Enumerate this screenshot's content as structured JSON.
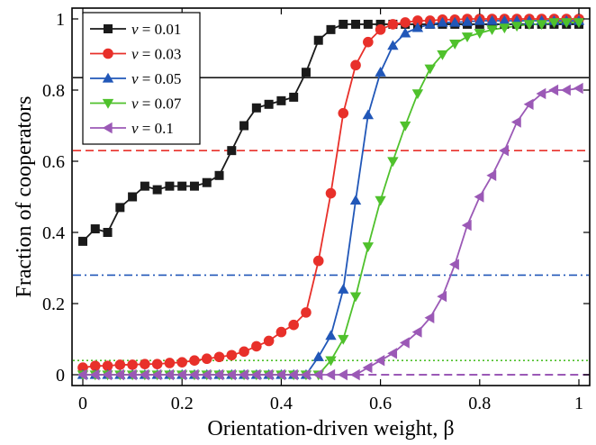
{
  "chart_data": {
    "type": "line",
    "xlabel": "Orientation-driven weight, β",
    "ylabel": "Fraction of cooperators",
    "xlim": [
      0,
      1
    ],
    "ylim": [
      0,
      1
    ],
    "x_ticks": [
      "0",
      "0.2",
      "0.4",
      "0.6",
      "0.8",
      "1"
    ],
    "y_ticks": [
      "0",
      "0.2",
      "0.4",
      "0.6",
      "0.8",
      "1"
    ],
    "grid": false,
    "legend_position": "top-left",
    "x": [
      0,
      0.025,
      0.05,
      0.075,
      0.1,
      0.125,
      0.15,
      0.175,
      0.2,
      0.225,
      0.25,
      0.275,
      0.3,
      0.325,
      0.35,
      0.375,
      0.4,
      0.425,
      0.45,
      0.475,
      0.5,
      0.525,
      0.55,
      0.575,
      0.6,
      0.625,
      0.65,
      0.675,
      0.7,
      0.725,
      0.75,
      0.775,
      0.8,
      0.825,
      0.85,
      0.875,
      0.9,
      0.925,
      0.95,
      0.975,
      1
    ],
    "series": [
      {
        "name": "v = 0.01",
        "var": "v",
        "value_text": " = 0.01",
        "color": "#1a1a1a",
        "marker": "square",
        "baseline": 0.835,
        "baseline_style": "solid",
        "values": [
          0.375,
          0.41,
          0.4,
          0.47,
          0.5,
          0.53,
          0.52,
          0.53,
          0.53,
          0.53,
          0.54,
          0.56,
          0.63,
          0.7,
          0.75,
          0.76,
          0.77,
          0.78,
          0.85,
          0.94,
          0.97,
          0.985,
          0.985,
          0.985,
          0.985,
          0.985,
          0.985,
          0.985,
          0.985,
          0.985,
          0.985,
          0.985,
          0.985,
          0.985,
          0.985,
          0.985,
          0.985,
          0.985,
          0.985,
          0.985,
          0.985
        ]
      },
      {
        "name": "v = 0.03",
        "var": "v",
        "value_text": " = 0.03",
        "color": "#e8302a",
        "marker": "circle",
        "baseline": 0.63,
        "baseline_style": "dashed",
        "values": [
          0.02,
          0.025,
          0.025,
          0.028,
          0.028,
          0.03,
          0.03,
          0.033,
          0.035,
          0.04,
          0.045,
          0.05,
          0.055,
          0.065,
          0.08,
          0.095,
          0.12,
          0.14,
          0.175,
          0.32,
          0.51,
          0.735,
          0.87,
          0.935,
          0.97,
          0.985,
          0.99,
          0.995,
          0.995,
          0.998,
          0.998,
          1.0,
          1.0,
          1.0,
          1.0,
          1.0,
          1.0,
          1.0,
          1.0,
          1.0,
          1.0
        ]
      },
      {
        "name": "v = 0.05",
        "var": "v",
        "value_text": " = 0.05",
        "color": "#2157b8",
        "marker": "triangle-up",
        "baseline": 0.28,
        "baseline_style": "dashdot",
        "values": [
          0.0,
          0.0,
          0.0,
          0.0,
          0.0,
          0.0,
          0.0,
          0.0,
          0.0,
          0.0,
          0.0,
          0.0,
          0.0,
          0.0,
          0.0,
          0.0,
          0.0,
          0.0,
          0.0,
          0.05,
          0.11,
          0.24,
          0.49,
          0.73,
          0.85,
          0.925,
          0.96,
          0.975,
          0.985,
          0.99,
          0.99,
          0.992,
          0.995,
          0.995,
          0.995,
          0.995,
          0.995,
          0.995,
          0.995,
          0.995,
          0.995
        ]
      },
      {
        "name": "v = 0.07",
        "var": "v",
        "value_text": " = 0.07",
        "color": "#4fc12c",
        "marker": "triangle-down",
        "baseline": 0.04,
        "baseline_style": "dotted",
        "values": [
          0.0,
          0.0,
          0.0,
          0.0,
          0.0,
          0.0,
          0.0,
          0.0,
          0.0,
          0.0,
          0.0,
          0.0,
          0.0,
          0.0,
          0.0,
          0.0,
          0.0,
          0.0,
          0.0,
          0.0,
          0.04,
          0.1,
          0.22,
          0.36,
          0.49,
          0.6,
          0.7,
          0.79,
          0.86,
          0.9,
          0.93,
          0.95,
          0.96,
          0.97,
          0.975,
          0.98,
          0.985,
          0.985,
          0.99,
          0.99,
          0.99
        ]
      },
      {
        "name": "v = 0.1",
        "var": "v",
        "value_text": " = 0.1",
        "color": "#9b59b6",
        "marker": "triangle-left",
        "baseline": 0.0,
        "baseline_style": "dashed",
        "values": [
          0.0,
          0.0,
          0.0,
          0.0,
          0.0,
          0.0,
          0.0,
          0.0,
          0.0,
          0.0,
          0.0,
          0.0,
          0.0,
          0.0,
          0.0,
          0.0,
          0.0,
          0.0,
          0.0,
          0.0,
          0.0,
          0.0,
          0.0,
          0.02,
          0.04,
          0.06,
          0.09,
          0.12,
          0.16,
          0.22,
          0.31,
          0.42,
          0.5,
          0.56,
          0.63,
          0.71,
          0.76,
          0.79,
          0.8,
          0.8,
          0.805
        ]
      }
    ]
  }
}
